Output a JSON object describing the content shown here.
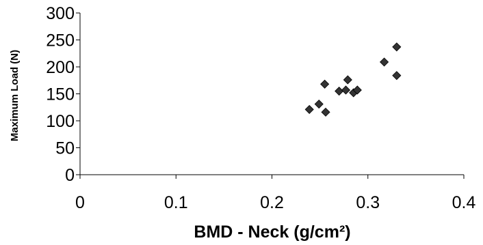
{
  "chart_data": {
    "type": "scatter",
    "title": "",
    "xlabel": "BMD - Neck (g/cm²)",
    "ylabel": "Maximum Load  (N)",
    "xlim": [
      0,
      0.4
    ],
    "ylim": [
      0,
      300
    ],
    "xticks": [
      0,
      0.1,
      0.2,
      0.3,
      0.4
    ],
    "yticks": [
      0,
      50,
      100,
      150,
      200,
      250,
      300
    ],
    "xtick_labels": [
      "0",
      "0.1",
      "0.2",
      "0.3",
      "0.4"
    ],
    "ytick_labels": [
      "0",
      "50",
      "100",
      "150",
      "200",
      "250",
      "300"
    ],
    "grid": false,
    "legend": "none",
    "marker": "diamond",
    "marker_color": "#333333",
    "series": [
      {
        "x": [
          0.239,
          0.249,
          0.255,
          0.256,
          0.27,
          0.277,
          0.279,
          0.285,
          0.289,
          0.317,
          0.33,
          0.33
        ],
        "y": [
          121,
          131,
          168,
          116,
          155,
          157,
          176,
          152,
          157,
          209,
          237,
          184
        ]
      }
    ]
  }
}
